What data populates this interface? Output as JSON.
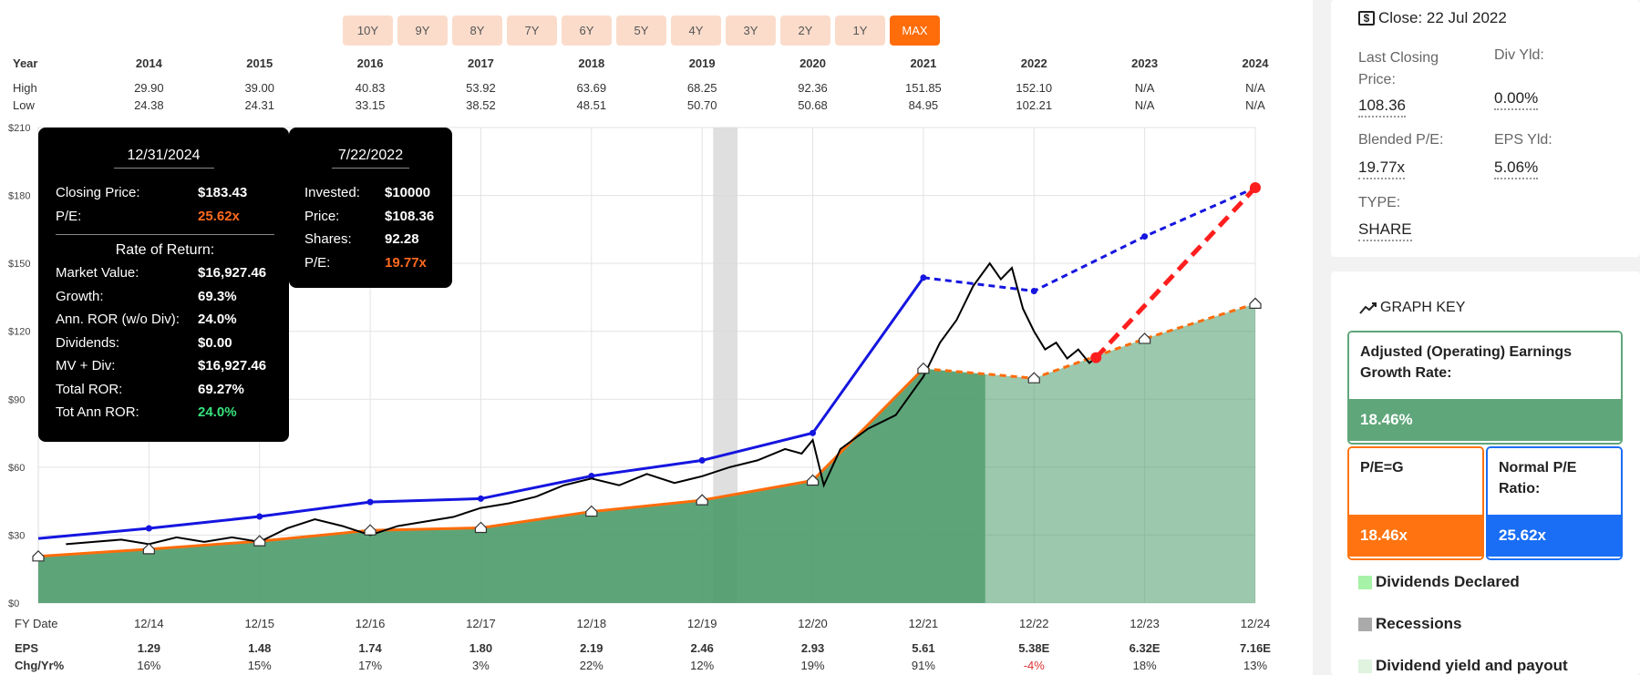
{
  "range_buttons": [
    "10Y",
    "9Y",
    "8Y",
    "7Y",
    "6Y",
    "5Y",
    "4Y",
    "3Y",
    "2Y",
    "1Y",
    "MAX"
  ],
  "range_active": "MAX",
  "year_table": {
    "labels": {
      "year": "Year",
      "high": "High",
      "low": "Low"
    },
    "years": [
      "2014",
      "2015",
      "2016",
      "2017",
      "2018",
      "2019",
      "2020",
      "2021",
      "2022",
      "2023",
      "2024"
    ],
    "high": [
      "29.90",
      "39.00",
      "40.83",
      "53.92",
      "63.69",
      "68.25",
      "92.36",
      "151.85",
      "152.10",
      "N/A",
      "N/A"
    ],
    "low": [
      "24.38",
      "24.31",
      "33.15",
      "38.52",
      "48.51",
      "50.70",
      "50.68",
      "84.95",
      "102.21",
      "N/A",
      "N/A"
    ]
  },
  "bottom_table": {
    "labels": {
      "fy": "FY Date",
      "eps": "EPS",
      "chg": "Chg/Yr%"
    },
    "dates": [
      "12/14",
      "12/15",
      "12/16",
      "12/17",
      "12/18",
      "12/19",
      "12/20",
      "12/21",
      "12/22",
      "12/23",
      "12/24"
    ],
    "eps": [
      "1.29",
      "1.48",
      "1.74",
      "1.80",
      "2.19",
      "2.46",
      "2.93",
      "5.61",
      "5.38E",
      "6.32E",
      "7.16E"
    ],
    "chg": [
      "16%",
      "15%",
      "17%",
      "3%",
      "22%",
      "12%",
      "19%",
      "91%",
      "-4%",
      "18%",
      "13%"
    ],
    "chg_negative": [
      false,
      false,
      false,
      false,
      false,
      false,
      false,
      false,
      true,
      false,
      false
    ]
  },
  "chart_data": {
    "type": "line",
    "y_tick_labels": [
      "$0",
      "$30",
      "$60",
      "$90",
      "$120",
      "$150",
      "$180",
      "$210"
    ],
    "ylim": [
      0,
      210
    ],
    "x_tick_labels": [
      "12/14",
      "12/15",
      "12/16",
      "12/17",
      "12/18",
      "12/19",
      "12/20",
      "12/21",
      "12/22",
      "12/23",
      "12/24"
    ],
    "xlim": [
      2013.0,
      2024.0
    ],
    "grid": true,
    "earnings_value": {
      "x": [
        2013.0,
        2014.0,
        2015.0,
        2016.0,
        2017.0,
        2018.0,
        2019.0,
        2020.0,
        2021.0,
        2022.0,
        2023.0,
        2024.0
      ],
      "y": [
        20.6,
        23.8,
        27.3,
        32.1,
        33.2,
        40.4,
        45.4,
        54.1,
        103.5,
        99.3,
        116.7,
        132.2
      ],
      "estimate_from_index": 9,
      "color": "#ff6c0a"
    },
    "normal_pe_line": {
      "x": [
        2013.0,
        2014.0,
        2015.0,
        2016.0,
        2017.0,
        2018.0,
        2019.0,
        2020.0,
        2021.0,
        2022.0,
        2023.0,
        2024.0
      ],
      "y": [
        28.5,
        33.0,
        38.2,
        44.6,
        46.1,
        56.1,
        63.0,
        75.1,
        143.7,
        137.8,
        161.9,
        183.43
      ],
      "estimate_from_index": 9,
      "color": "#1515e0"
    },
    "price": {
      "x": [
        2013.25,
        2013.5,
        2013.75,
        2014.0,
        2014.25,
        2014.5,
        2014.75,
        2015.0,
        2015.25,
        2015.5,
        2015.75,
        2016.0,
        2016.25,
        2016.5,
        2016.75,
        2017.0,
        2017.25,
        2017.5,
        2017.75,
        2018.0,
        2018.25,
        2018.5,
        2018.75,
        2019.0,
        2019.25,
        2019.5,
        2019.75,
        2019.9,
        2020.0,
        2020.1,
        2020.25,
        2020.5,
        2020.75,
        2021.0,
        2021.15,
        2021.3,
        2021.45,
        2021.6,
        2021.7,
        2021.8,
        2021.9,
        2022.0,
        2022.1,
        2022.2,
        2022.3,
        2022.4,
        2022.5,
        2022.56
      ],
      "y": [
        26,
        27,
        28,
        26,
        29,
        27,
        29,
        27,
        33,
        37,
        34,
        30,
        34,
        36,
        38,
        42,
        44,
        47,
        52,
        55,
        52,
        57,
        53,
        56,
        60,
        63,
        68,
        66,
        72,
        52,
        68,
        77,
        83,
        100,
        115,
        125,
        140,
        150,
        143,
        148,
        130,
        120,
        112,
        115,
        108,
        112,
        106,
        108.36
      ],
      "color": "#000000"
    },
    "projection": {
      "x": [
        2022.56,
        2024.0
      ],
      "y": [
        108.36,
        183.43
      ],
      "color": "#ff1e1e"
    },
    "recession": [
      2019.1,
      2019.32
    ],
    "actual_end": 2021.56,
    "fill_color": "#4b9b6a"
  },
  "tooltip_left": {
    "date": "12/31/2024",
    "rows": [
      {
        "label": "Closing Price:",
        "value": "$183.43",
        "highlight": ""
      },
      {
        "label": "P/E:",
        "value": "25.62x",
        "highlight": "orange"
      }
    ],
    "section_title": "Rate of Return:",
    "rows2": [
      {
        "label": "Market Value:",
        "value": "$16,927.46",
        "highlight": ""
      },
      {
        "label": "Growth:",
        "value": "69.3%",
        "highlight": ""
      },
      {
        "label": "Ann. ROR (w/o Div):",
        "value": "24.0%",
        "highlight": ""
      },
      {
        "label": "Dividends:",
        "value": "$0.00",
        "highlight": ""
      },
      {
        "label": "MV + Div:",
        "value": "$16,927.46",
        "highlight": ""
      },
      {
        "label": "Total ROR:",
        "value": "69.27%",
        "highlight": ""
      },
      {
        "label": "Tot Ann ROR:",
        "value": "24.0%",
        "highlight": "green"
      }
    ]
  },
  "tooltip_right": {
    "date": "7/22/2022",
    "rows": [
      {
        "label": "Invested:",
        "value": "$10000",
        "highlight": ""
      },
      {
        "label": "Price:",
        "value": "$108.36",
        "highlight": ""
      },
      {
        "label": "Shares:",
        "value": "92.28",
        "highlight": ""
      },
      {
        "label": "P/E:",
        "value": "19.77x",
        "highlight": "orange"
      }
    ]
  },
  "summary": {
    "close_icon": "dollar-icon",
    "close_text": "Close: 22 Jul 2022",
    "last_closing_label": "Last Closing Price:",
    "last_closing_value": "108.36",
    "div_yld_label": "Div Yld:",
    "div_yld_value": "0.00%",
    "blended_pe_label": "Blended P/E:",
    "blended_pe_value": "19.77x",
    "eps_yld_label": "EPS Yld:",
    "eps_yld_value": "5.06%",
    "type_label": "TYPE:",
    "type_value": "SHARE"
  },
  "graph_key": {
    "icon": "trend-line-icon",
    "title": "GRAPH KEY",
    "earnings_growth_label": "Adjusted (Operating) Earnings Growth Rate:",
    "earnings_growth_value": "18.46%",
    "earnings_growth_color": "#5fa67a",
    "peg_label": "P/E=G",
    "peg_value": "18.46x",
    "peg_color": "#ff7410",
    "normal_pe_label": "Normal P/E Ratio:",
    "normal_pe_value": "25.62x",
    "normal_pe_color": "#1a6ef5",
    "legend": [
      {
        "label": "Dividends Declared",
        "color": "#a6f2a6"
      },
      {
        "label": "Recessions",
        "color": "#aaaaaa"
      },
      {
        "label": "Dividend yield and payout",
        "color": "#dff3df"
      }
    ]
  }
}
